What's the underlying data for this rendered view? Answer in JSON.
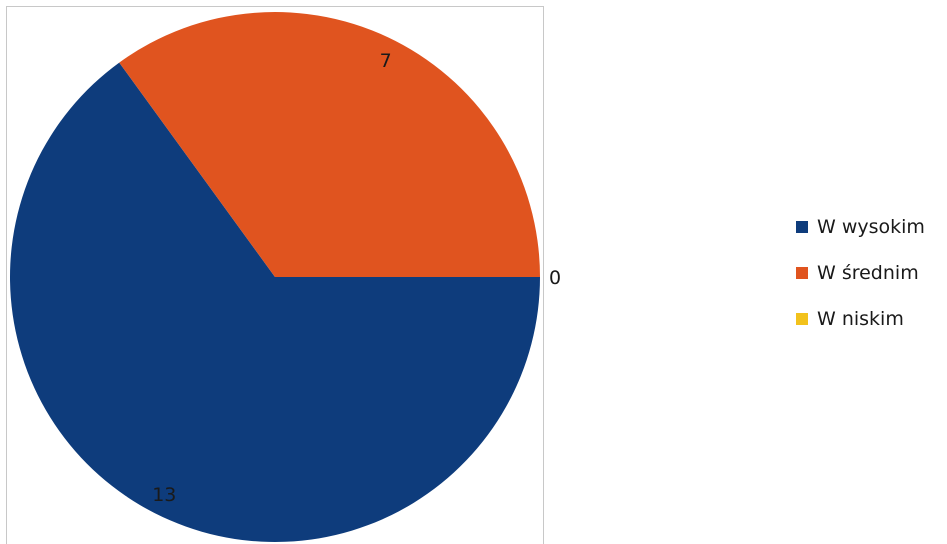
{
  "chart_data": {
    "type": "pie",
    "categories": [
      "W wysokim",
      "W średnim",
      "W niskim"
    ],
    "values": [
      13,
      7,
      0
    ],
    "colors": [
      "#0e3c7c",
      "#e0541f",
      "#f2c21c"
    ],
    "data_labels": [
      "13",
      "7",
      "0"
    ],
    "legend_position": "right",
    "title": ""
  },
  "legend": {
    "items": [
      {
        "label": "W wysokim",
        "color": "#0e3c7c"
      },
      {
        "label": "W średnim",
        "color": "#e0541f"
      },
      {
        "label": "W niskim",
        "color": "#f2c21c"
      }
    ]
  }
}
